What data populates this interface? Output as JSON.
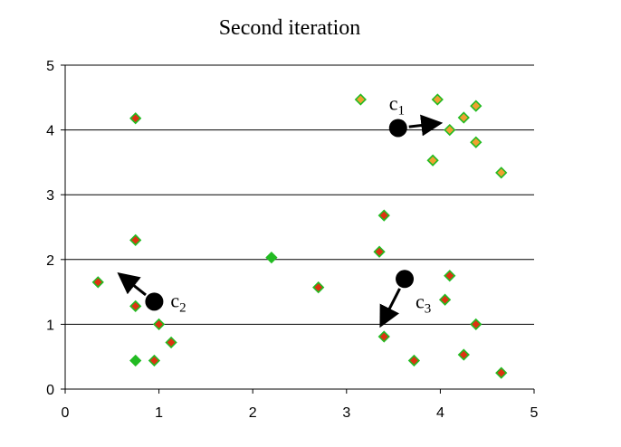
{
  "chart_data": {
    "type": "scatter",
    "title": "Second iteration",
    "xlabel": "",
    "ylabel": "",
    "xlim": [
      0,
      5
    ],
    "ylim": [
      0,
      5
    ],
    "xticks": [
      "0",
      "1",
      "2",
      "3",
      "4",
      "5"
    ],
    "yticks": [
      "0",
      "1",
      "2",
      "3",
      "4",
      "5"
    ],
    "grid": "horizontal",
    "colors": {
      "green": "#22bb22",
      "orange": "#f0a030",
      "red": "#dd3311",
      "centroid": "#000000"
    },
    "points": [
      {
        "x": 0.75,
        "y": 4.18,
        "fill": "red",
        "edge": "green"
      },
      {
        "x": 0.75,
        "y": 2.3,
        "fill": "red",
        "edge": "green"
      },
      {
        "x": 0.35,
        "y": 1.65,
        "fill": "red",
        "edge": "green"
      },
      {
        "x": 0.75,
        "y": 1.28,
        "fill": "red",
        "edge": "green"
      },
      {
        "x": 1.0,
        "y": 1.0,
        "fill": "red",
        "edge": "green"
      },
      {
        "x": 1.13,
        "y": 0.72,
        "fill": "red",
        "edge": "green"
      },
      {
        "x": 0.75,
        "y": 0.44,
        "fill": "green",
        "edge": "green"
      },
      {
        "x": 0.95,
        "y": 0.44,
        "fill": "red",
        "edge": "green"
      },
      {
        "x": 2.2,
        "y": 2.03,
        "fill": "green",
        "edge": "green"
      },
      {
        "x": 2.7,
        "y": 1.57,
        "fill": "red",
        "edge": "green"
      },
      {
        "x": 3.15,
        "y": 4.47,
        "fill": "orange",
        "edge": "green"
      },
      {
        "x": 3.97,
        "y": 4.47,
        "fill": "orange",
        "edge": "green"
      },
      {
        "x": 4.38,
        "y": 4.37,
        "fill": "orange",
        "edge": "green"
      },
      {
        "x": 4.25,
        "y": 4.19,
        "fill": "orange",
        "edge": "green"
      },
      {
        "x": 4.1,
        "y": 4.0,
        "fill": "orange",
        "edge": "green"
      },
      {
        "x": 4.38,
        "y": 3.81,
        "fill": "orange",
        "edge": "green"
      },
      {
        "x": 3.92,
        "y": 3.53,
        "fill": "orange",
        "edge": "green"
      },
      {
        "x": 4.65,
        "y": 3.34,
        "fill": "orange",
        "edge": "green"
      },
      {
        "x": 3.4,
        "y": 2.68,
        "fill": "red",
        "edge": "green"
      },
      {
        "x": 3.35,
        "y": 2.12,
        "fill": "red",
        "edge": "green"
      },
      {
        "x": 4.1,
        "y": 1.75,
        "fill": "red",
        "edge": "green"
      },
      {
        "x": 4.05,
        "y": 1.38,
        "fill": "red",
        "edge": "green"
      },
      {
        "x": 4.38,
        "y": 1.0,
        "fill": "red",
        "edge": "green"
      },
      {
        "x": 3.4,
        "y": 0.81,
        "fill": "red",
        "edge": "green"
      },
      {
        "x": 3.72,
        "y": 0.44,
        "fill": "red",
        "edge": "green"
      },
      {
        "x": 4.25,
        "y": 0.53,
        "fill": "red",
        "edge": "green"
      },
      {
        "x": 4.65,
        "y": 0.25,
        "fill": "red",
        "edge": "green"
      }
    ],
    "centroids": [
      {
        "name": "c",
        "sub": "1",
        "x": 3.55,
        "y": 4.03,
        "arrow_to": [
          3.97,
          4.1
        ],
        "label_pos": "above-left"
      },
      {
        "name": "c",
        "sub": "2",
        "x": 0.95,
        "y": 1.35,
        "arrow_to": [
          0.6,
          1.75
        ],
        "label_pos": "right"
      },
      {
        "name": "c",
        "sub": "3",
        "x": 3.62,
        "y": 1.7,
        "arrow_to": [
          3.38,
          1.02
        ],
        "label_pos": "below-right"
      }
    ]
  }
}
